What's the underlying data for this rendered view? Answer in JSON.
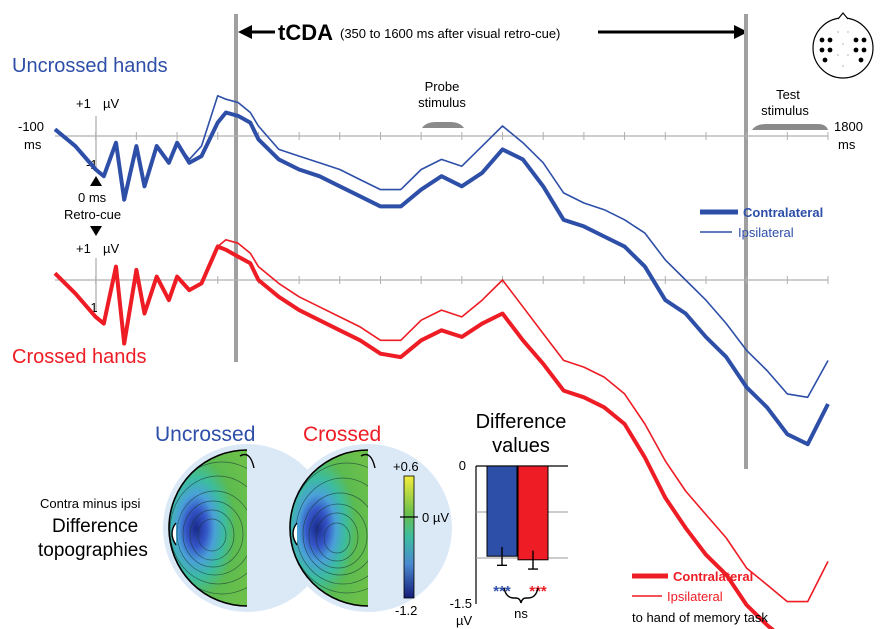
{
  "header": {
    "bracket_label": "tCDA",
    "bracket_note": "(350 to 1600 ms after visual retro-cue)"
  },
  "conditions": {
    "uncrossed": "Uncrossed hands",
    "crossed": "Crossed hands"
  },
  "axis": {
    "start_value": "-100",
    "start_unit": "ms",
    "end_value": "1800",
    "end_unit": "ms",
    "plus_one": "+1",
    "minus_one": "-1",
    "unit_uv": "µV",
    "zero_ms": "0 ms",
    "retro_cue": "Retro-cue"
  },
  "events": {
    "probe_line1": "Probe",
    "probe_line2": "stimulus",
    "test_line1": "Test",
    "test_line2": "stimulus"
  },
  "legend_top": {
    "contra": "Contralateral",
    "ipsi": "Ipsilateral"
  },
  "legend_bottom": {
    "contra": "Contralateral",
    "ipsi": "Ipsilateral",
    "note": "to hand of memory task"
  },
  "topographies": {
    "label_small": "Contra minus ipsi",
    "label_line1": "Difference",
    "label_line2": "topographies",
    "uncrossed": "Uncrossed",
    "crossed": "Crossed",
    "scale_max": "+0.6",
    "scale_mid": "0 µV",
    "scale_min": "-1.2"
  },
  "colors": {
    "uncrossed": "#2e4fa8",
    "crossed": "#ee1c24",
    "marker": "#a0a0a0"
  },
  "chart_data": [
    {
      "type": "line",
      "x": [
        -100,
        -50,
        0,
        20,
        50,
        70,
        100,
        120,
        150,
        180,
        200,
        230,
        260,
        300,
        320,
        350,
        380,
        400,
        450,
        500,
        550,
        600,
        650,
        700,
        750,
        800,
        850,
        900,
        950,
        1000,
        1050,
        1100,
        1150,
        1200,
        1250,
        1300,
        1350,
        1400,
        1450,
        1500,
        1550,
        1600,
        1650,
        1700,
        1750,
        1800
      ],
      "series": [
        {
          "name": "Uncrossed hands - Contralateral",
          "values": [
            0.2,
            -0.3,
            -1.0,
            -1.2,
            -0.2,
            -1.9,
            -0.3,
            -1.5,
            -0.3,
            -0.8,
            -0.2,
            -0.8,
            -0.6,
            0.4,
            0.7,
            0.6,
            0.4,
            -0.1,
            -0.7,
            -1.0,
            -1.2,
            -1.5,
            -1.8,
            -2.1,
            -2.1,
            -1.6,
            -1.2,
            -1.5,
            -1.1,
            -0.4,
            -0.7,
            -1.5,
            -2.5,
            -2.7,
            -3.0,
            -3.3,
            -3.9,
            -4.9,
            -5.3,
            -6.0,
            -6.6,
            -7.5,
            -8.1,
            -8.9,
            -9.2,
            -8.0
          ]
        },
        {
          "name": "Uncrossed hands - Ipsilateral",
          "values": [
            0.2,
            -0.3,
            -1.0,
            -1.2,
            -0.2,
            -1.9,
            -0.3,
            -1.5,
            -0.3,
            -0.8,
            -0.2,
            -0.7,
            -0.3,
            1.2,
            1.1,
            1.0,
            0.7,
            0.3,
            -0.4,
            -0.6,
            -0.8,
            -1.0,
            -1.3,
            -1.6,
            -1.6,
            -1.0,
            -0.7,
            -0.9,
            -0.3,
            0.3,
            -0.2,
            -0.8,
            -1.7,
            -2.0,
            -2.2,
            -2.5,
            -2.9,
            -3.7,
            -4.3,
            -4.9,
            -5.6,
            -6.4,
            -7.0,
            -7.7,
            -7.8,
            -6.7
          ]
        },
        {
          "name": "Crossed hands - Contralateral",
          "values": [
            0.2,
            -0.4,
            -1.1,
            -1.3,
            0.4,
            -1.9,
            0.3,
            -1.0,
            0.1,
            -0.6,
            0.1,
            -0.3,
            -0.1,
            1.0,
            0.9,
            0.7,
            0.5,
            0.0,
            -0.5,
            -0.9,
            -1.2,
            -1.5,
            -1.8,
            -2.2,
            -2.3,
            -1.8,
            -1.5,
            -1.7,
            -1.3,
            -1.0,
            -1.8,
            -2.5,
            -3.3,
            -3.5,
            -3.8,
            -4.3,
            -5.3,
            -6.5,
            -7.4,
            -8.2,
            -8.8,
            -9.7,
            -10.3,
            -10.8,
            -11.1,
            -10.5
          ]
        },
        {
          "name": "Crossed hands - Ipsilateral",
          "values": [
            0.2,
            -0.4,
            -1.1,
            -1.3,
            0.4,
            -1.9,
            0.3,
            -1.0,
            0.1,
            -0.6,
            0.1,
            -0.3,
            -0.1,
            1.0,
            1.2,
            1.1,
            0.8,
            0.4,
            -0.1,
            -0.5,
            -0.8,
            -1.1,
            -1.4,
            -1.8,
            -1.8,
            -1.2,
            -0.9,
            -1.1,
            -0.6,
            0.0,
            -0.8,
            -1.6,
            -2.4,
            -2.6,
            -2.9,
            -3.4,
            -4.3,
            -5.4,
            -6.3,
            -7.0,
            -7.7,
            -8.6,
            -9.1,
            -9.6,
            -9.6,
            -8.4
          ]
        }
      ],
      "xlim": [
        -100,
        1800
      ]
    },
    {
      "type": "bar",
      "title": "Difference values",
      "categories": [
        "Uncrossed",
        "Crossed"
      ],
      "values": [
        -0.98,
        -1.02
      ],
      "errors": [
        0.1,
        0.1
      ],
      "ylim": [
        -1.5,
        0
      ],
      "tick_top": "0",
      "tick_bottom": "-1.5",
      "ylabel": "µV",
      "significance": [
        "***",
        "***"
      ],
      "comparison": "ns"
    }
  ]
}
